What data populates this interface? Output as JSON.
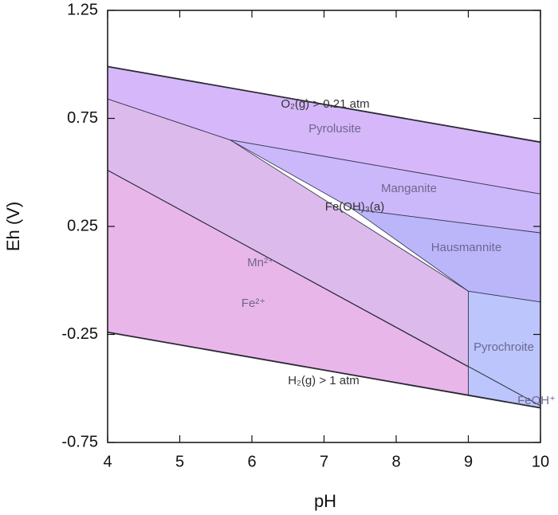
{
  "chart_data": {
    "type": "pourbaix",
    "xlabel": "pH",
    "ylabel": "Eh (V)",
    "xlim": [
      4,
      10
    ],
    "ylim": [
      -0.75,
      1.25
    ],
    "xticks": [
      4,
      5,
      6,
      7,
      8,
      9,
      10
    ],
    "yticks": [
      -0.75,
      -0.25,
      0.25,
      0.75,
      1.25
    ],
    "regions": [
      {
        "color": "#e9b6ea",
        "x": [
          4,
          9,
          9,
          4
        ],
        "y": [
          0.51,
          -0.4,
          -0.53,
          -0.24
        ]
      },
      {
        "color": "#dcbbec",
        "x": [
          4,
          5.7,
          9,
          9,
          4
        ],
        "y": [
          0.84,
          0.65,
          -0.05,
          -0.4,
          0.51
        ]
      },
      {
        "color": "#d6b8fa",
        "x": [
          4,
          10,
          10,
          5.7,
          4
        ],
        "y": [
          0.99,
          0.64,
          0.4,
          0.65,
          0.84
        ]
      },
      {
        "color": "#cbb8fa",
        "x": [
          5.7,
          10,
          10,
          7.4
        ],
        "y": [
          0.65,
          0.4,
          0.22,
          0.33
        ]
      },
      {
        "color": "#bbb6fa",
        "x": [
          7.4,
          10,
          10,
          9
        ],
        "y": [
          0.33,
          0.22,
          -0.1,
          -0.05
        ]
      },
      {
        "color": "#bcc6fc",
        "x": [
          9,
          10,
          10,
          9
        ],
        "y": [
          -0.05,
          -0.1,
          -0.59,
          -0.53
        ]
      }
    ],
    "boundaries": [
      {
        "x": [
          4,
          10
        ],
        "y": [
          0.99,
          0.64
        ]
      },
      {
        "x": [
          4,
          10
        ],
        "y": [
          -0.24,
          -0.59
        ]
      },
      {
        "x": [
          4,
          10
        ],
        "y": [
          0.51,
          -0.58
        ]
      }
    ],
    "annotations": [
      "O₂(g) > 0.21 atm",
      "Pyrolusite",
      "Manganite",
      "Fe(OH)₃(a)",
      "Hausmannite",
      "Mn²⁺",
      "Fe²⁺",
      "Pyrochroite",
      "H₂(g) > 1 atm",
      "FeOH⁺"
    ]
  }
}
